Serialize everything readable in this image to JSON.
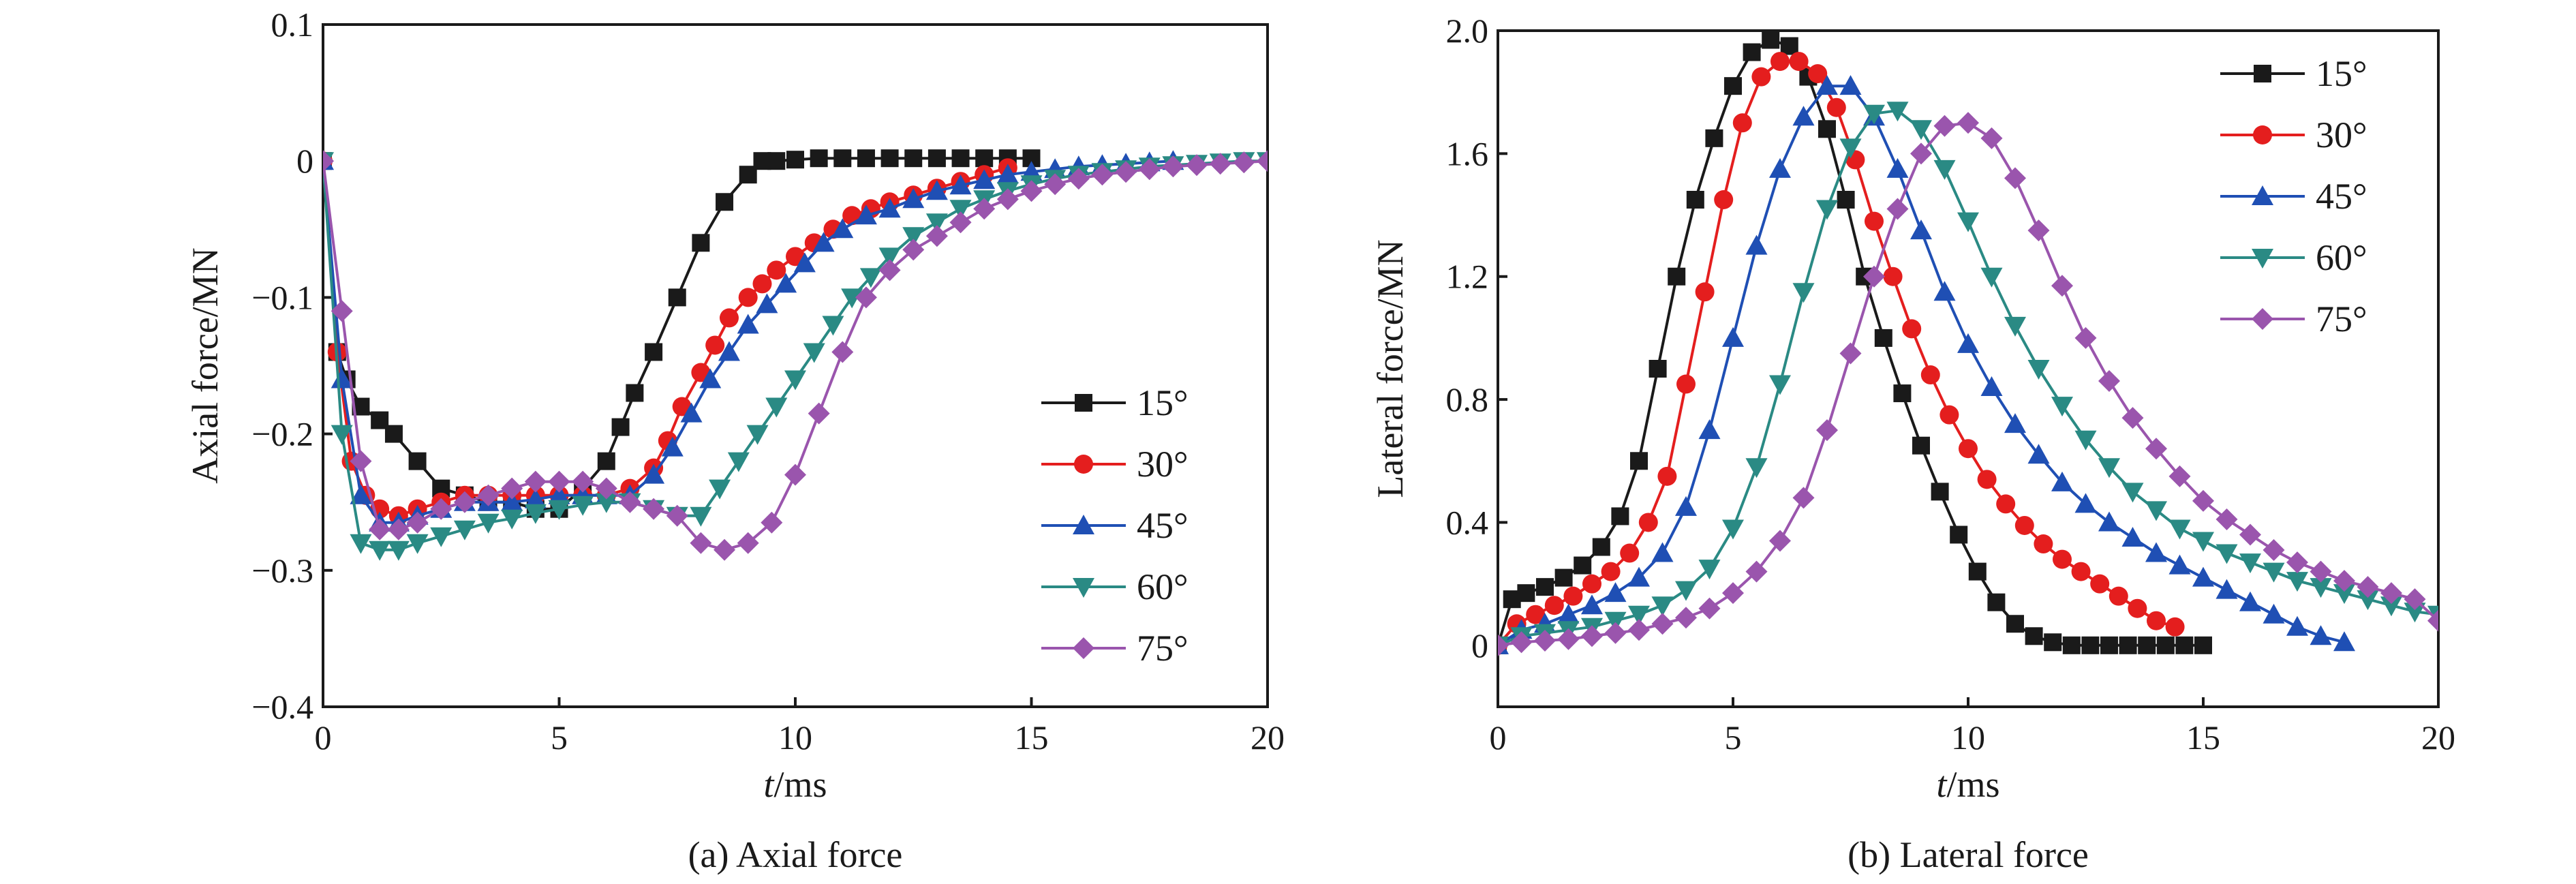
{
  "chart_data": [
    {
      "type": "line",
      "caption": "(a) Axial force",
      "xlabel_italic": "t",
      "xlabel_rest": "/ms",
      "ylabel": "Axial force/MN",
      "xlim": [
        0,
        20
      ],
      "ylim": [
        -0.4,
        0.1
      ],
      "xticks": [
        0,
        5,
        10,
        15,
        20
      ],
      "yticks": [
        -0.4,
        -0.3,
        -0.2,
        -0.1,
        0,
        0.1
      ],
      "ytick_labels": [
        "−0.4",
        "−0.3",
        "−0.2",
        "−0.1",
        "0",
        "0.1"
      ],
      "xtick_labels": [
        "0",
        "5",
        "10",
        "15",
        "20"
      ],
      "legend_position": "right",
      "series": [
        {
          "name": "15°",
          "color": "#1a1a1a",
          "marker": "square",
          "x": [
            0,
            0.3,
            0.5,
            0.8,
            1.2,
            1.5,
            2,
            2.5,
            3,
            3.5,
            4,
            4.5,
            5,
            5.5,
            6,
            6.3,
            6.6,
            7,
            7.5,
            8,
            8.5,
            9,
            9.3,
            9.6,
            10,
            10.5,
            11,
            11.5,
            12,
            12.5,
            13,
            13.5,
            14,
            14.5,
            15
          ],
          "y": [
            0,
            -0.14,
            -0.16,
            -0.18,
            -0.19,
            -0.2,
            -0.22,
            -0.24,
            -0.245,
            -0.25,
            -0.25,
            -0.255,
            -0.255,
            -0.24,
            -0.22,
            -0.195,
            -0.17,
            -0.14,
            -0.1,
            -0.06,
            -0.03,
            -0.01,
            0,
            0,
            0.001,
            0.002,
            0.002,
            0.002,
            0.002,
            0.002,
            0.002,
            0.002,
            0.002,
            0.002,
            0.002
          ]
        },
        {
          "name": "30°",
          "color": "#e41e1e",
          "marker": "circle",
          "x": [
            0,
            0.3,
            0.6,
            0.9,
            1.2,
            1.6,
            2,
            2.5,
            3,
            3.5,
            4,
            4.5,
            5,
            5.5,
            6,
            6.5,
            7,
            7.3,
            7.6,
            8,
            8.3,
            8.6,
            9,
            9.3,
            9.6,
            10,
            10.4,
            10.8,
            11.2,
            11.6,
            12,
            12.5,
            13,
            13.5,
            14,
            14.5
          ],
          "y": [
            0,
            -0.14,
            -0.22,
            -0.245,
            -0.255,
            -0.26,
            -0.255,
            -0.25,
            -0.245,
            -0.245,
            -0.245,
            -0.245,
            -0.245,
            -0.245,
            -0.245,
            -0.24,
            -0.225,
            -0.205,
            -0.18,
            -0.155,
            -0.135,
            -0.115,
            -0.1,
            -0.09,
            -0.08,
            -0.07,
            -0.06,
            -0.05,
            -0.04,
            -0.035,
            -0.03,
            -0.025,
            -0.02,
            -0.015,
            -0.01,
            -0.005
          ]
        },
        {
          "name": "45°",
          "color": "#1f4fb4",
          "marker": "triangle-up",
          "x": [
            0,
            0.4,
            0.8,
            1.2,
            1.6,
            2,
            2.5,
            3,
            3.5,
            4,
            4.5,
            5,
            5.5,
            6,
            6.5,
            7,
            7.4,
            7.8,
            8.2,
            8.6,
            9,
            9.4,
            9.8,
            10.2,
            10.6,
            11,
            11.5,
            12,
            12.5,
            13,
            13.5,
            14,
            14.5,
            15,
            15.5,
            16,
            16.5,
            17,
            17.5,
            18
          ],
          "y": [
            0,
            -0.16,
            -0.245,
            -0.265,
            -0.265,
            -0.26,
            -0.255,
            -0.25,
            -0.25,
            -0.25,
            -0.248,
            -0.245,
            -0.245,
            -0.245,
            -0.245,
            -0.23,
            -0.21,
            -0.185,
            -0.16,
            -0.14,
            -0.12,
            -0.105,
            -0.09,
            -0.075,
            -0.06,
            -0.05,
            -0.04,
            -0.035,
            -0.028,
            -0.022,
            -0.018,
            -0.014,
            -0.01,
            -0.008,
            -0.006,
            -0.004,
            -0.003,
            -0.002,
            -0.001,
            0
          ]
        },
        {
          "name": "60°",
          "color": "#2a8a84",
          "marker": "triangle-down",
          "x": [
            0,
            0.4,
            0.8,
            1.2,
            1.6,
            2,
            2.5,
            3,
            3.5,
            4,
            4.5,
            5,
            5.5,
            6,
            6.5,
            7,
            7.5,
            8,
            8.4,
            8.8,
            9.2,
            9.6,
            10,
            10.4,
            10.8,
            11.2,
            11.6,
            12,
            12.5,
            13,
            13.5,
            14,
            14.5,
            15,
            15.5,
            16,
            16.5,
            17,
            17.5,
            18,
            18.5,
            19,
            19.5,
            20
          ],
          "y": [
            0,
            -0.2,
            -0.28,
            -0.285,
            -0.285,
            -0.28,
            -0.275,
            -0.27,
            -0.265,
            -0.262,
            -0.258,
            -0.255,
            -0.252,
            -0.25,
            -0.25,
            -0.255,
            -0.26,
            -0.26,
            -0.24,
            -0.22,
            -0.2,
            -0.18,
            -0.16,
            -0.14,
            -0.12,
            -0.1,
            -0.085,
            -0.07,
            -0.055,
            -0.045,
            -0.035,
            -0.028,
            -0.022,
            -0.017,
            -0.013,
            -0.01,
            -0.008,
            -0.006,
            -0.004,
            -0.003,
            -0.002,
            -0.001,
            0,
            0
          ]
        },
        {
          "name": "75°",
          "color": "#9a55ad",
          "marker": "diamond",
          "x": [
            0,
            0.4,
            0.8,
            1.2,
            1.6,
            2,
            2.5,
            3,
            3.5,
            4,
            4.5,
            5,
            5.5,
            6,
            6.5,
            7,
            7.5,
            8,
            8.5,
            9,
            9.5,
            10,
            10.5,
            11,
            11.5,
            12,
            12.5,
            13,
            13.5,
            14,
            14.5,
            15,
            15.5,
            16,
            16.5,
            17,
            17.5,
            18,
            18.5,
            19,
            19.5,
            20
          ],
          "y": [
            0,
            -0.11,
            -0.22,
            -0.27,
            -0.27,
            -0.265,
            -0.255,
            -0.25,
            -0.245,
            -0.24,
            -0.235,
            -0.235,
            -0.235,
            -0.24,
            -0.25,
            -0.255,
            -0.26,
            -0.28,
            -0.285,
            -0.28,
            -0.265,
            -0.23,
            -0.185,
            -0.14,
            -0.1,
            -0.08,
            -0.065,
            -0.055,
            -0.045,
            -0.035,
            -0.028,
            -0.022,
            -0.017,
            -0.013,
            -0.01,
            -0.008,
            -0.006,
            -0.004,
            -0.003,
            -0.002,
            -0.001,
            0
          ]
        }
      ]
    },
    {
      "type": "line",
      "caption": "(b) Lateral force",
      "xlabel_italic": "t",
      "xlabel_rest": "/ms",
      "ylabel": "Lateral force/MN",
      "xlim": [
        0,
        20
      ],
      "ylim": [
        -0.2,
        2.0
      ],
      "xticks": [
        0,
        5,
        10,
        15,
        20
      ],
      "yticks": [
        0,
        0.4,
        0.8,
        1.2,
        1.6,
        2.0
      ],
      "ytick_labels": [
        "0",
        "0.4",
        "0.8",
        "1.2",
        "1.6",
        "2.0"
      ],
      "xtick_labels": [
        "0",
        "5",
        "10",
        "15",
        "20"
      ],
      "legend_position": "top-right",
      "series": [
        {
          "name": "15°",
          "color": "#1a1a1a",
          "marker": "square",
          "x": [
            0,
            0.3,
            0.6,
            1,
            1.4,
            1.8,
            2.2,
            2.6,
            3,
            3.4,
            3.8,
            4.2,
            4.6,
            5,
            5.4,
            5.8,
            6.2,
            6.6,
            7,
            7.4,
            7.8,
            8.2,
            8.6,
            9,
            9.4,
            9.8,
            10.2,
            10.6,
            11,
            11.4,
            11.8,
            12.2,
            12.6,
            13,
            13.4,
            13.8,
            14.2,
            14.6,
            15
          ],
          "y": [
            0,
            0.15,
            0.17,
            0.19,
            0.22,
            0.26,
            0.32,
            0.42,
            0.6,
            0.9,
            1.2,
            1.45,
            1.65,
            1.82,
            1.93,
            1.97,
            1.95,
            1.85,
            1.68,
            1.45,
            1.2,
            1.0,
            0.82,
            0.65,
            0.5,
            0.36,
            0.24,
            0.14,
            0.07,
            0.03,
            0.01,
            0,
            0,
            0,
            0,
            0,
            0,
            0,
            0
          ]
        },
        {
          "name": "30°",
          "color": "#e41e1e",
          "marker": "circle",
          "x": [
            0,
            0.4,
            0.8,
            1.2,
            1.6,
            2,
            2.4,
            2.8,
            3.2,
            3.6,
            4,
            4.4,
            4.8,
            5.2,
            5.6,
            6,
            6.4,
            6.8,
            7.2,
            7.6,
            8,
            8.4,
            8.8,
            9.2,
            9.6,
            10,
            10.4,
            10.8,
            11.2,
            11.6,
            12,
            12.4,
            12.8,
            13.2,
            13.6,
            14,
            14.4
          ],
          "y": [
            0,
            0.07,
            0.1,
            0.13,
            0.16,
            0.2,
            0.24,
            0.3,
            0.4,
            0.55,
            0.85,
            1.15,
            1.45,
            1.7,
            1.85,
            1.9,
            1.9,
            1.86,
            1.75,
            1.58,
            1.38,
            1.2,
            1.03,
            0.88,
            0.75,
            0.64,
            0.54,
            0.46,
            0.39,
            0.33,
            0.28,
            0.24,
            0.2,
            0.16,
            0.12,
            0.08,
            0.06
          ]
        },
        {
          "name": "45°",
          "color": "#1f4fb4",
          "marker": "triangle-up",
          "x": [
            0,
            0.5,
            1,
            1.5,
            2,
            2.5,
            3,
            3.5,
            4,
            4.5,
            5,
            5.5,
            6,
            6.5,
            7,
            7.5,
            8,
            8.5,
            9,
            9.5,
            10,
            10.5,
            11,
            11.5,
            12,
            12.5,
            13,
            13.5,
            14,
            14.5,
            15,
            15.5,
            16,
            16.5,
            17,
            17.5,
            18
          ],
          "y": [
            0,
            0.05,
            0.07,
            0.1,
            0.13,
            0.17,
            0.22,
            0.3,
            0.45,
            0.7,
            1.0,
            1.3,
            1.55,
            1.72,
            1.82,
            1.82,
            1.72,
            1.55,
            1.35,
            1.15,
            0.98,
            0.84,
            0.72,
            0.62,
            0.53,
            0.46,
            0.4,
            0.35,
            0.3,
            0.26,
            0.22,
            0.18,
            0.14,
            0.1,
            0.06,
            0.03,
            0.01
          ]
        },
        {
          "name": "60°",
          "color": "#2a8a84",
          "marker": "triangle-down",
          "x": [
            0,
            0.5,
            1,
            1.5,
            2,
            2.5,
            3,
            3.5,
            4,
            4.5,
            5,
            5.5,
            6,
            6.5,
            7,
            7.5,
            8,
            8.5,
            9,
            9.5,
            10,
            10.5,
            11,
            11.5,
            12,
            12.5,
            13,
            13.5,
            14,
            14.5,
            15,
            15.5,
            16,
            16.5,
            17,
            17.5,
            18,
            18.5,
            19,
            19.5,
            20
          ],
          "y": [
            0,
            0.03,
            0.04,
            0.05,
            0.06,
            0.08,
            0.1,
            0.13,
            0.18,
            0.25,
            0.38,
            0.58,
            0.85,
            1.15,
            1.42,
            1.62,
            1.73,
            1.74,
            1.68,
            1.55,
            1.38,
            1.2,
            1.04,
            0.9,
            0.78,
            0.67,
            0.58,
            0.5,
            0.44,
            0.38,
            0.34,
            0.3,
            0.27,
            0.24,
            0.21,
            0.19,
            0.17,
            0.15,
            0.13,
            0.11,
            0.1
          ]
        },
        {
          "name": "75°",
          "color": "#9a55ad",
          "marker": "diamond",
          "x": [
            0,
            0.5,
            1,
            1.5,
            2,
            2.5,
            3,
            3.5,
            4,
            4.5,
            5,
            5.5,
            6,
            6.5,
            7,
            7.5,
            8,
            8.5,
            9,
            9.5,
            10,
            10.5,
            11,
            11.5,
            12,
            12.5,
            13,
            13.5,
            14,
            14.5,
            15,
            15.5,
            16,
            16.5,
            17,
            17.5,
            18,
            18.5,
            19,
            19.5,
            20
          ],
          "y": [
            0,
            0.01,
            0.015,
            0.02,
            0.03,
            0.04,
            0.05,
            0.07,
            0.09,
            0.12,
            0.17,
            0.24,
            0.34,
            0.48,
            0.7,
            0.95,
            1.2,
            1.42,
            1.6,
            1.69,
            1.7,
            1.65,
            1.52,
            1.35,
            1.17,
            1.0,
            0.86,
            0.74,
            0.64,
            0.55,
            0.47,
            0.41,
            0.36,
            0.31,
            0.27,
            0.24,
            0.21,
            0.19,
            0.17,
            0.15,
            0.08
          ]
        }
      ]
    }
  ]
}
